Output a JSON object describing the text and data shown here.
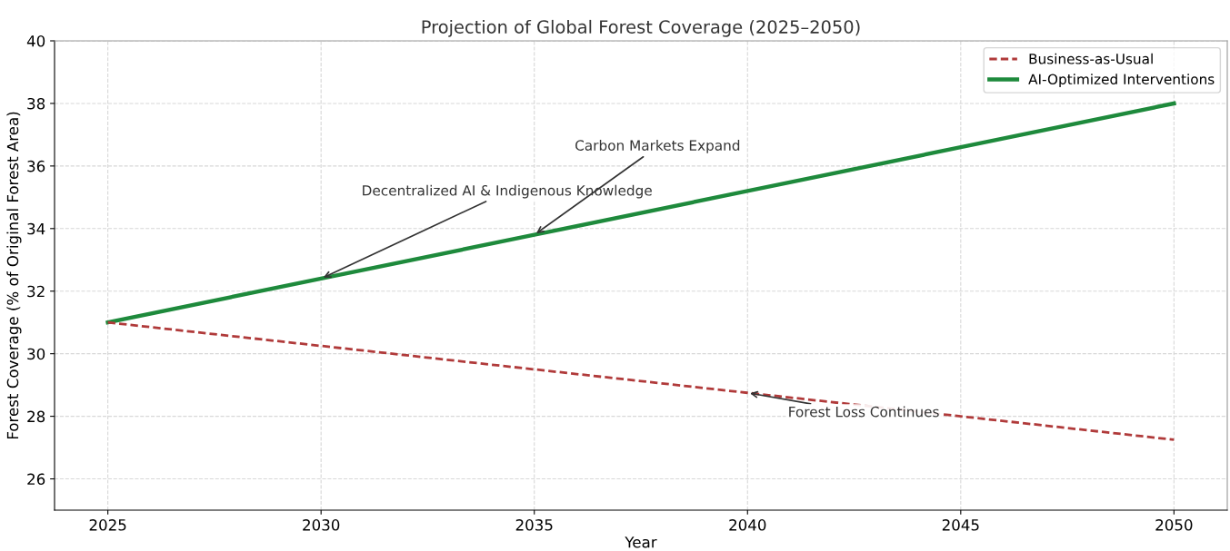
{
  "chart_data": {
    "type": "line",
    "title": "Projection of Global Forest Coverage (2025–2050)",
    "xlabel": "Year",
    "ylabel": "Forest Coverage (% of Original Forest Area)",
    "x": [
      2025,
      2030,
      2035,
      2040,
      2045,
      2050
    ],
    "series": [
      {
        "name": "Business-as-Usual",
        "color": "#b03a3a",
        "line_style": "dashed",
        "values": [
          31,
          30.25,
          29.5,
          28.75,
          28.0,
          27.25
        ]
      },
      {
        "name": "AI-Optimized Interventions",
        "color": "#1e8a3c",
        "line_style": "solid",
        "values": [
          31,
          32.4,
          33.8,
          35.2,
          36.6,
          38
        ]
      }
    ],
    "xlim": [
      2023.75,
      2051.25
    ],
    "xticks": [
      2025,
      2030,
      2035,
      2040,
      2045,
      2050
    ],
    "ylim": [
      25,
      40
    ],
    "yticks": [
      26,
      28,
      30,
      32,
      34,
      36,
      38,
      40
    ],
    "annotations": [
      {
        "text": "Decentralized AI & Indigenous Knowledge",
        "x": 2030,
        "y": 32.4
      },
      {
        "text": "Carbon Markets Expand",
        "x": 2035,
        "y": 33.8
      },
      {
        "text": "Forest Loss Continues",
        "x": 2040,
        "y": 28.75
      }
    ],
    "grid": true,
    "legend": "top right",
    "marker": "none"
  }
}
